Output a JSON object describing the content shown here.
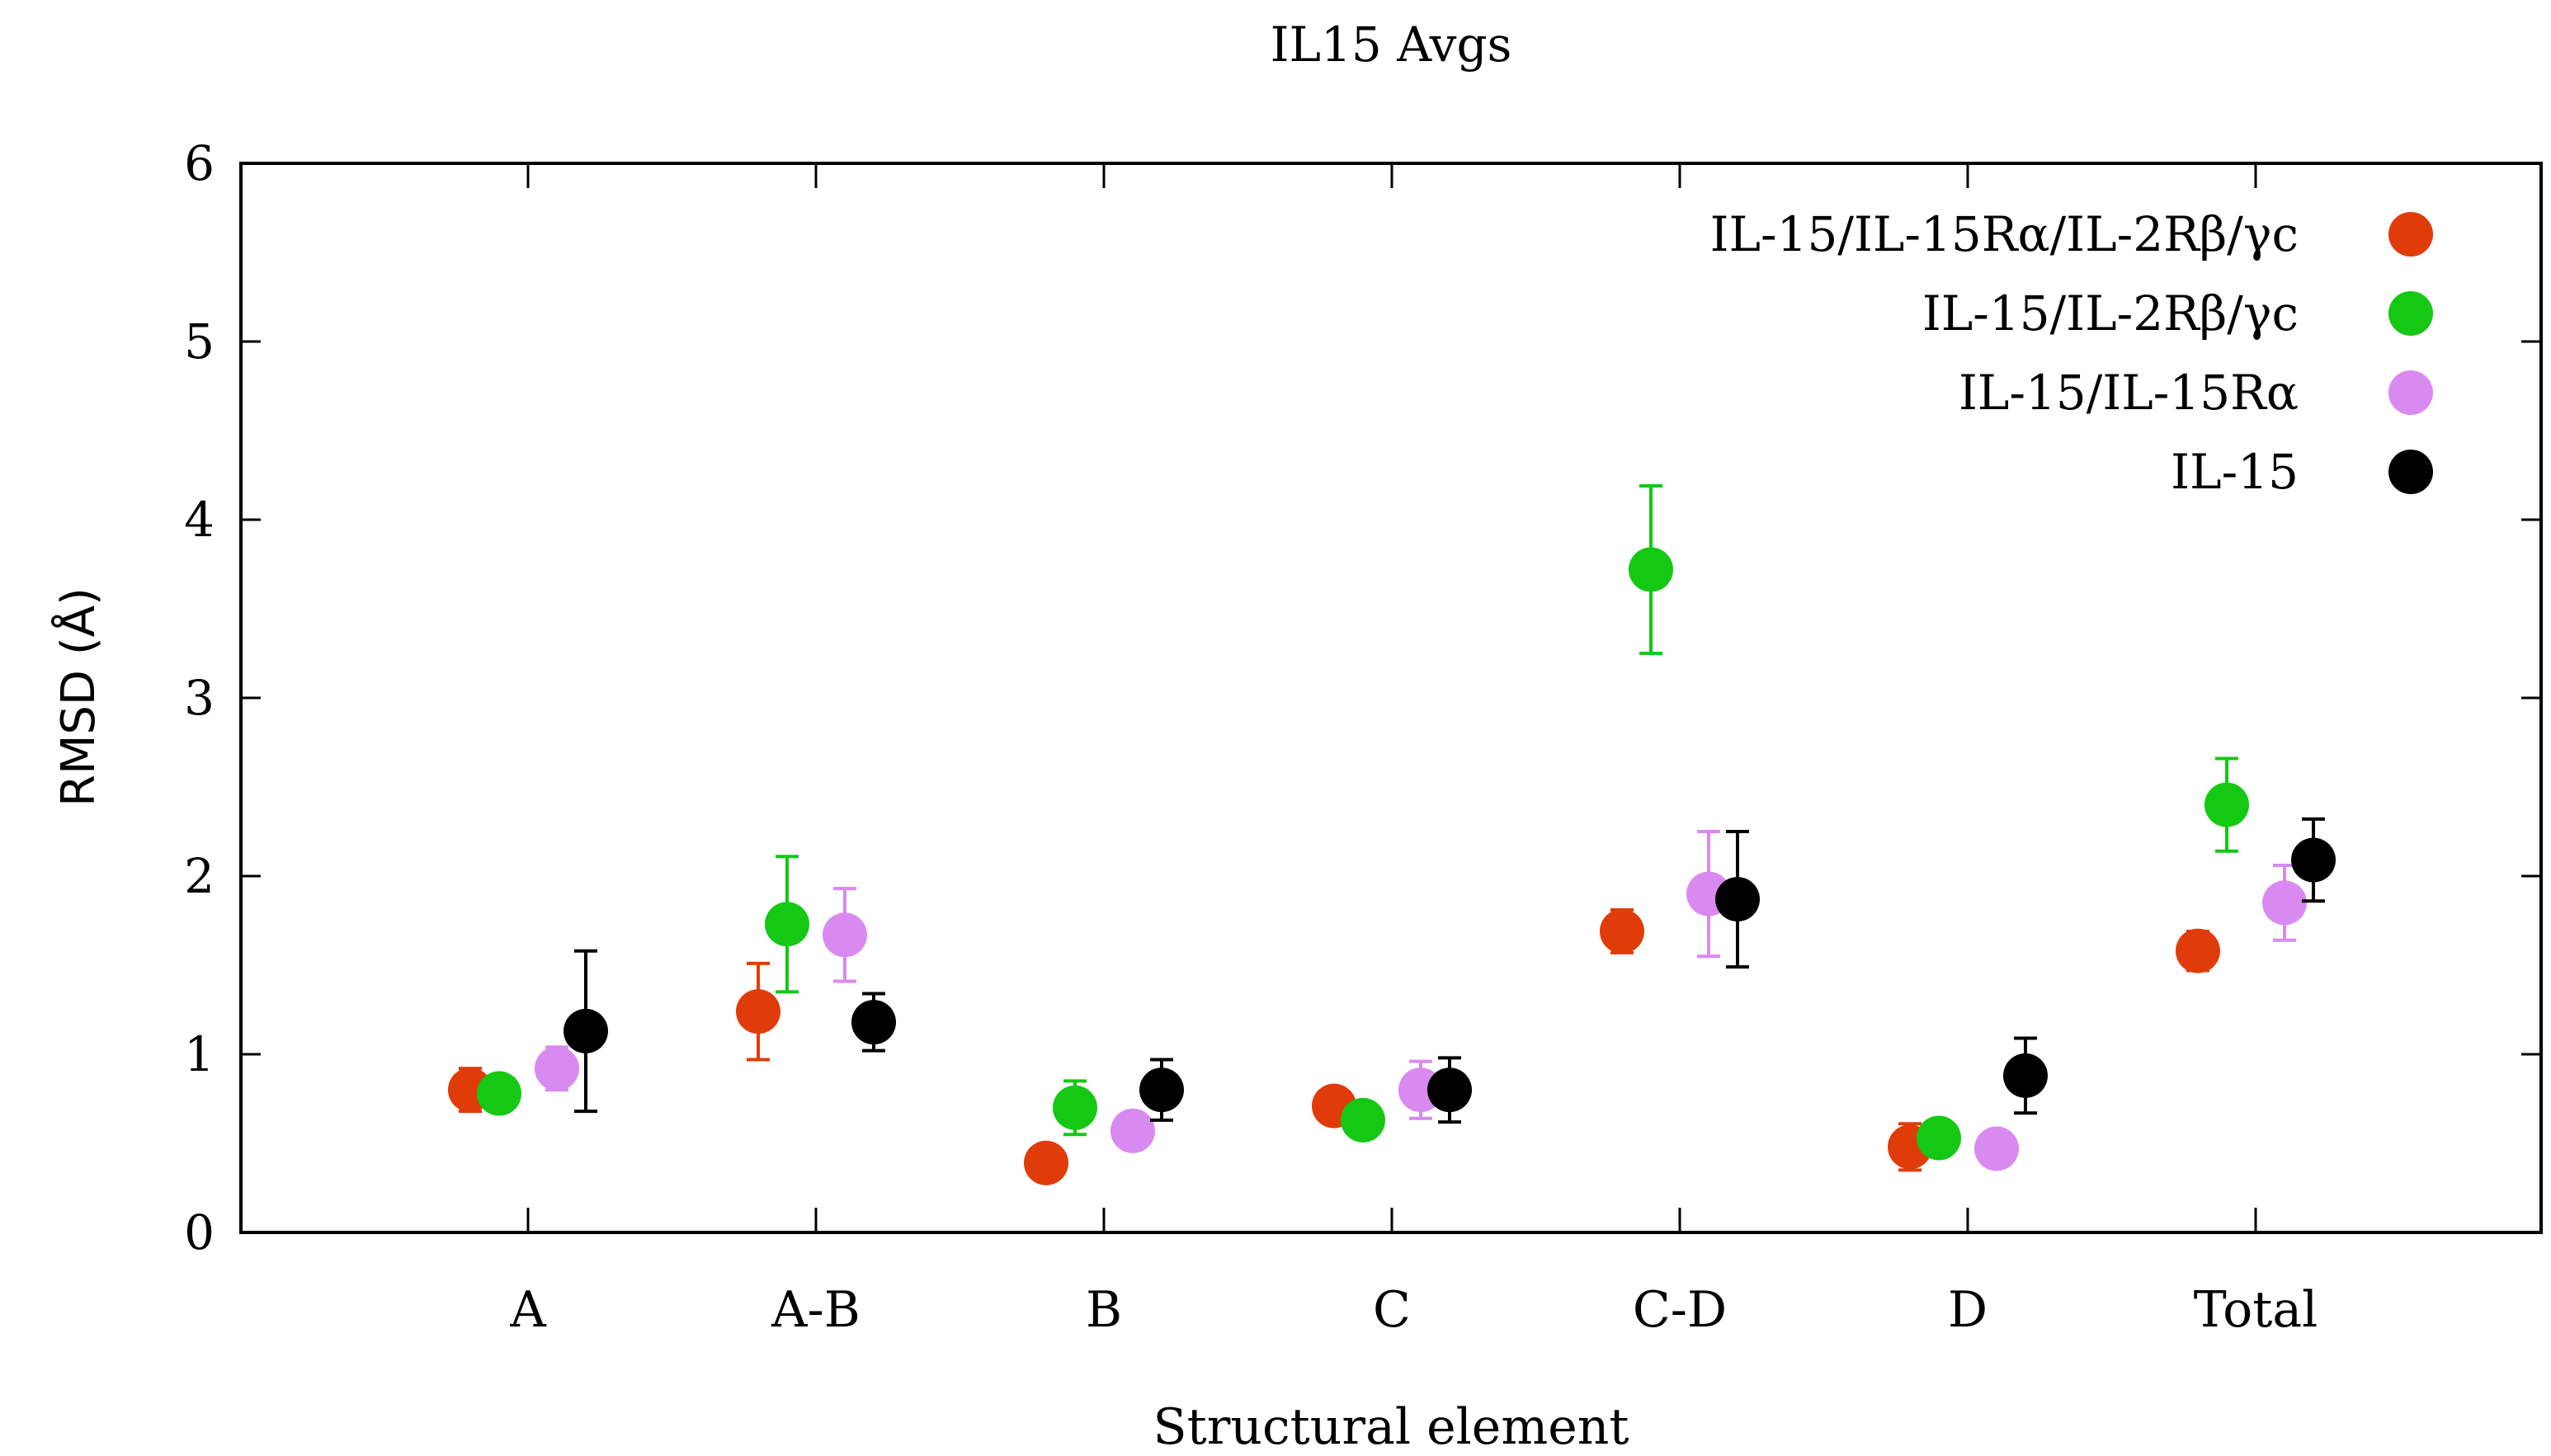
{
  "chart_data": {
    "type": "scatter",
    "title": "IL15 Avgs",
    "xlabel": "Structural element",
    "ylabel": "RMSD (Å)",
    "categories": [
      "A",
      "A-B",
      "B",
      "C",
      "C-D",
      "D",
      "Total"
    ],
    "ylim": [
      0,
      6
    ],
    "yticks": [
      "0",
      "1",
      "2",
      "3",
      "4",
      "5",
      "6"
    ],
    "grid": false,
    "legend_position": "top-right",
    "error_bars": true,
    "series": [
      {
        "name": "IL-15/IL-15Rα/IL-2Rβ/γc",
        "color": "#e03c0a",
        "values": [
          0.8,
          1.24,
          0.39,
          0.71,
          1.69,
          0.48,
          1.58
        ],
        "errors": [
          0.12,
          0.27,
          0.03,
          0.05,
          0.12,
          0.13,
          0.11
        ]
      },
      {
        "name": "IL-15/IL-2Rβ/γc",
        "color": "#14c814",
        "values": [
          0.78,
          1.73,
          0.7,
          0.63,
          3.72,
          0.53,
          2.4
        ],
        "errors": [
          0.05,
          0.38,
          0.15,
          0.1,
          0.47,
          0.07,
          0.26
        ]
      },
      {
        "name": "IL-15/IL-15Rα",
        "color": "#d98af0",
        "values": [
          0.92,
          1.67,
          0.57,
          0.8,
          1.9,
          0.47,
          1.85
        ],
        "errors": [
          0.12,
          0.26,
          0.04,
          0.16,
          0.35,
          0.04,
          0.21
        ]
      },
      {
        "name": "IL-15",
        "color": "#000000",
        "values": [
          1.13,
          1.18,
          0.8,
          0.8,
          1.87,
          0.88,
          2.09
        ],
        "errors": [
          0.45,
          0.16,
          0.17,
          0.18,
          0.38,
          0.21,
          0.23
        ]
      }
    ]
  }
}
